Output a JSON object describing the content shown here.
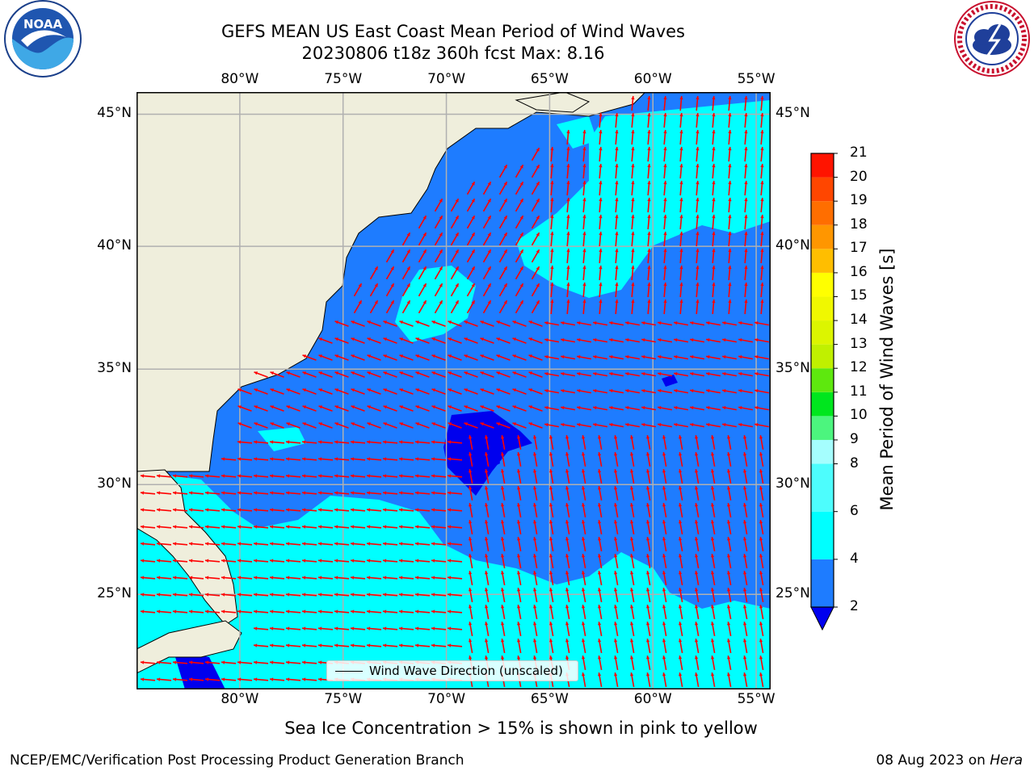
{
  "header": {
    "title_line1": "GEFS MEAN US East Coast Mean Period of Wind Waves",
    "title_line2": "20230806 t18z 360h fcst   Max: 8.16"
  },
  "logos": {
    "left": "NOAA",
    "right": "NATIONAL WEATHER SERVICE"
  },
  "map": {
    "lon_labels": [
      "80°W",
      "75°W",
      "70°W",
      "65°W",
      "60°W",
      "55°W"
    ],
    "lat_labels": [
      "45°N",
      "40°N",
      "35°N",
      "30°N",
      "25°N"
    ],
    "lon_values": [
      -80,
      -75,
      -70,
      -65,
      -60,
      -55
    ],
    "lat_values": [
      45,
      40,
      35,
      30,
      25
    ],
    "extent": {
      "lon_min": -85,
      "lon_max": -54.3,
      "lat_min": 20.5,
      "lat_max": 45.8
    },
    "legend_label": "Wind Wave Direction (unscaled)",
    "colors": {
      "land": "#efeedc",
      "ocean_2_4": "#1e7cff",
      "ocean_4_6": "#00ffff",
      "low": "#0000ee",
      "arrow": "#ff0000",
      "grid": "#b0b0b0"
    }
  },
  "colorbar": {
    "label": "Mean Period of Wind Waves [s]",
    "ticks": [
      "21",
      "20",
      "19",
      "18",
      "17",
      "16",
      "15",
      "14",
      "13",
      "12",
      "11",
      "10",
      "9",
      "8",
      "6",
      "4",
      "2"
    ],
    "bins": [
      {
        "from": 2,
        "to": 4,
        "color": "#1e7cff"
      },
      {
        "from": 4,
        "to": 6,
        "color": "#00ffff"
      },
      {
        "from": 6,
        "to": 8,
        "color": "#4dfdfd"
      },
      {
        "from": 8,
        "to": 9,
        "color": "#a5fefe"
      },
      {
        "from": 9,
        "to": 10,
        "color": "#4cf57e"
      },
      {
        "from": 10,
        "to": 11,
        "color": "#00e61e"
      },
      {
        "from": 11,
        "to": 12,
        "color": "#5ee80e"
      },
      {
        "from": 12,
        "to": 13,
        "color": "#c0f000"
      },
      {
        "from": 13,
        "to": 14,
        "color": "#dcf500"
      },
      {
        "from": 14,
        "to": 15,
        "color": "#f0f800"
      },
      {
        "from": 15,
        "to": 16,
        "color": "#ffff00"
      },
      {
        "from": 16,
        "to": 17,
        "color": "#ffbe00"
      },
      {
        "from": 17,
        "to": 18,
        "color": "#ff9600"
      },
      {
        "from": 18,
        "to": 19,
        "color": "#ff6e00"
      },
      {
        "from": 19,
        "to": 20,
        "color": "#ff4600"
      },
      {
        "from": 20,
        "to": 21,
        "color": "#ff1400"
      }
    ],
    "extend_color": "#0000ee"
  },
  "note": "Sea Ice Concentration > 15% is shown in pink to yellow",
  "footer": {
    "left": "NCEP/EMC/Verification Post Processing Product Generation Branch",
    "right_date": "08 Aug 2023 on",
    "right_host": "Hera"
  }
}
